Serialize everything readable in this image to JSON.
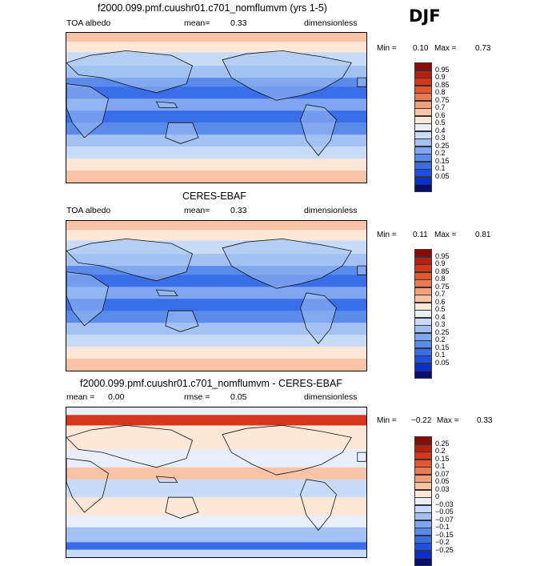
{
  "season": "DJF",
  "colors": {
    "albedo": [
      "#08106e",
      "#0a2fd0",
      "#1f4fe6",
      "#3a6ee8",
      "#5b8bea",
      "#7fa6ef",
      "#a3c2f3",
      "#c9dcf7",
      "#e8eefa",
      "#fde7d6",
      "#f8c3a6",
      "#f2a07c",
      "#ec7b54",
      "#e45632",
      "#d6361c",
      "#b81f10",
      "#8a0c04"
    ],
    "diff": [
      "#08106e",
      "#0a2fd0",
      "#1f4fe6",
      "#3a6ee8",
      "#5b8bea",
      "#7fa6ef",
      "#a3c2f3",
      "#c9dcf7",
      "#e8eefa",
      "#fde7d6",
      "#f8c3a6",
      "#f2a07c",
      "#ec7b54",
      "#e45632",
      "#d6361c",
      "#b81f10",
      "#8a0c04"
    ]
  },
  "panels": [
    {
      "title": "f2000.099.pmf.cuushr01.c701_nomflumvm (yrs 1-5)",
      "left_label": "TOA albedo",
      "mean_label": "mean=",
      "mean_value": "0.33",
      "units": "dimensionless",
      "min_label": "Min =",
      "min_value": "0.10",
      "max_label": "Max =",
      "max_value": "0.73",
      "colorbar": [
        "0.95",
        "0.9",
        "0.85",
        "0.8",
        "0.75",
        "0.7",
        "0.6",
        "0.5",
        "0.4",
        "0.3",
        "0.25",
        "0.2",
        "0.15",
        "0.1",
        "0.05"
      ]
    },
    {
      "title": "CERES-EBAF",
      "left_label": "TOA albedo",
      "mean_label": "mean=",
      "mean_value": "0.33",
      "units": "dimensionless",
      "min_label": "Min =",
      "min_value": "0.11",
      "max_label": "Max =",
      "max_value": "0.81",
      "colorbar": [
        "0.95",
        "0.9",
        "0.85",
        "0.8",
        "0.75",
        "0.7",
        "0.6",
        "0.5",
        "0.4",
        "0.3",
        "0.25",
        "0.2",
        "0.15",
        "0.1",
        "0.05"
      ]
    },
    {
      "title": "f2000.099.pmf.cuushr01.c701_nomflumvm - CERES-EBAF",
      "left_label": "mean =",
      "mean_label": "rmse =",
      "mean_value": "0.05",
      "left_value": "0.00",
      "units": "dimensionless",
      "min_label": "Min =",
      "min_value": "−0.22",
      "max_label": "Max =",
      "max_value": "0.33",
      "colorbar": [
        "0.25",
        "0.2",
        "0.15",
        "0.1",
        "0.07",
        "0.05",
        "0.03",
        "0",
        "−0.03",
        "−0.05",
        "−0.07",
        "−0.1",
        "−0.15",
        "−0.2",
        "−0.25"
      ]
    }
  ],
  "chart_data": [
    {
      "type": "heatmap",
      "title": "f2000.099.pmf.cuushr01.c701_nomflumvm (yrs 1-5)",
      "variable": "TOA albedo",
      "units": "dimensionless",
      "mean": 0.33,
      "min": 0.1,
      "max": 0.73,
      "contour_levels": [
        0.05,
        0.1,
        0.15,
        0.2,
        0.25,
        0.3,
        0.4,
        0.5,
        0.6,
        0.7,
        0.75,
        0.8,
        0.85,
        0.9,
        0.95
      ],
      "season": "DJF"
    },
    {
      "type": "heatmap",
      "title": "CERES-EBAF",
      "variable": "TOA albedo",
      "units": "dimensionless",
      "mean": 0.33,
      "min": 0.11,
      "max": 0.81,
      "contour_levels": [
        0.05,
        0.1,
        0.15,
        0.2,
        0.25,
        0.3,
        0.4,
        0.5,
        0.6,
        0.7,
        0.75,
        0.8,
        0.85,
        0.9,
        0.95
      ],
      "season": "DJF"
    },
    {
      "type": "heatmap",
      "title": "f2000.099.pmf.cuushr01.c701_nomflumvm - CERES-EBAF",
      "units": "dimensionless",
      "mean": 0.0,
      "rmse": 0.05,
      "min": -0.22,
      "max": 0.33,
      "contour_levels": [
        -0.25,
        -0.2,
        -0.15,
        -0.1,
        -0.07,
        -0.05,
        -0.03,
        0,
        0.03,
        0.05,
        0.07,
        0.1,
        0.15,
        0.2,
        0.25
      ],
      "season": "DJF"
    }
  ]
}
